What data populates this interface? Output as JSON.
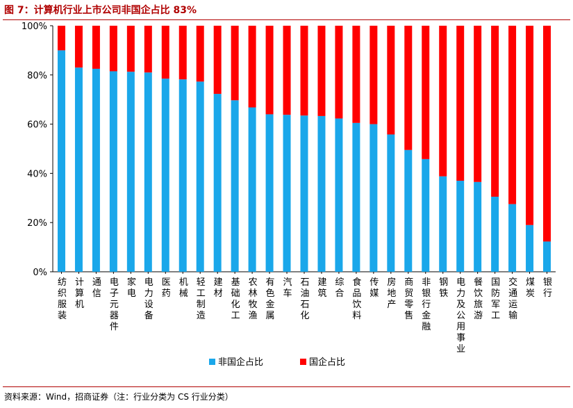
{
  "title": "图 7：计算机行业上市公司非国企占比 83%",
  "source": "资料来源：Wind，招商证券（注：行业分类为 CS 行业分类）",
  "colors": {
    "non_soe": "#1aa7ea",
    "soe": "#ff0000",
    "title": "#b00000"
  },
  "chart_data": {
    "type": "bar",
    "stacked": true,
    "yticks": [
      "0%",
      "20%",
      "40%",
      "60%",
      "80%",
      "100%"
    ],
    "ylim": [
      0,
      100
    ],
    "legend_position": "bottom",
    "grid": false,
    "categories": [
      "纺织服装",
      "计算机",
      "通信",
      "电子元器件",
      "家电",
      "电力设备",
      "医药",
      "机械",
      "轻工制造",
      "建材",
      "基础化工",
      "农林牧渔",
      "有色金属",
      "汽车",
      "石油石化",
      "建筑",
      "综合",
      "食品饮料",
      "传媒",
      "房地产",
      "商贸零售",
      "非银行金融",
      "钢铁",
      "电力及公用事业",
      "餐饮旅游",
      "国防军工",
      "交通运输",
      "煤炭",
      "银行"
    ],
    "series": [
      {
        "name": "非国企占比",
        "values": [
          90,
          83,
          82.5,
          81.5,
          81.3,
          81,
          78.5,
          78.2,
          77.3,
          72.3,
          69.7,
          66.8,
          64,
          63.8,
          63.5,
          63.3,
          62.3,
          60.5,
          60,
          55.8,
          49.5,
          45.8,
          38.8,
          37,
          36.5,
          30.5,
          27.5,
          19,
          12.3
        ]
      },
      {
        "name": "国企占比",
        "values": [
          10,
          17,
          17.5,
          18.5,
          18.7,
          19,
          21.5,
          21.8,
          22.7,
          27.7,
          30.3,
          33.2,
          36,
          36.2,
          36.5,
          36.7,
          37.7,
          39.5,
          40,
          44.2,
          50.5,
          54.2,
          61.2,
          63,
          63.5,
          69.5,
          72.5,
          81,
          87.7
        ]
      }
    ]
  }
}
